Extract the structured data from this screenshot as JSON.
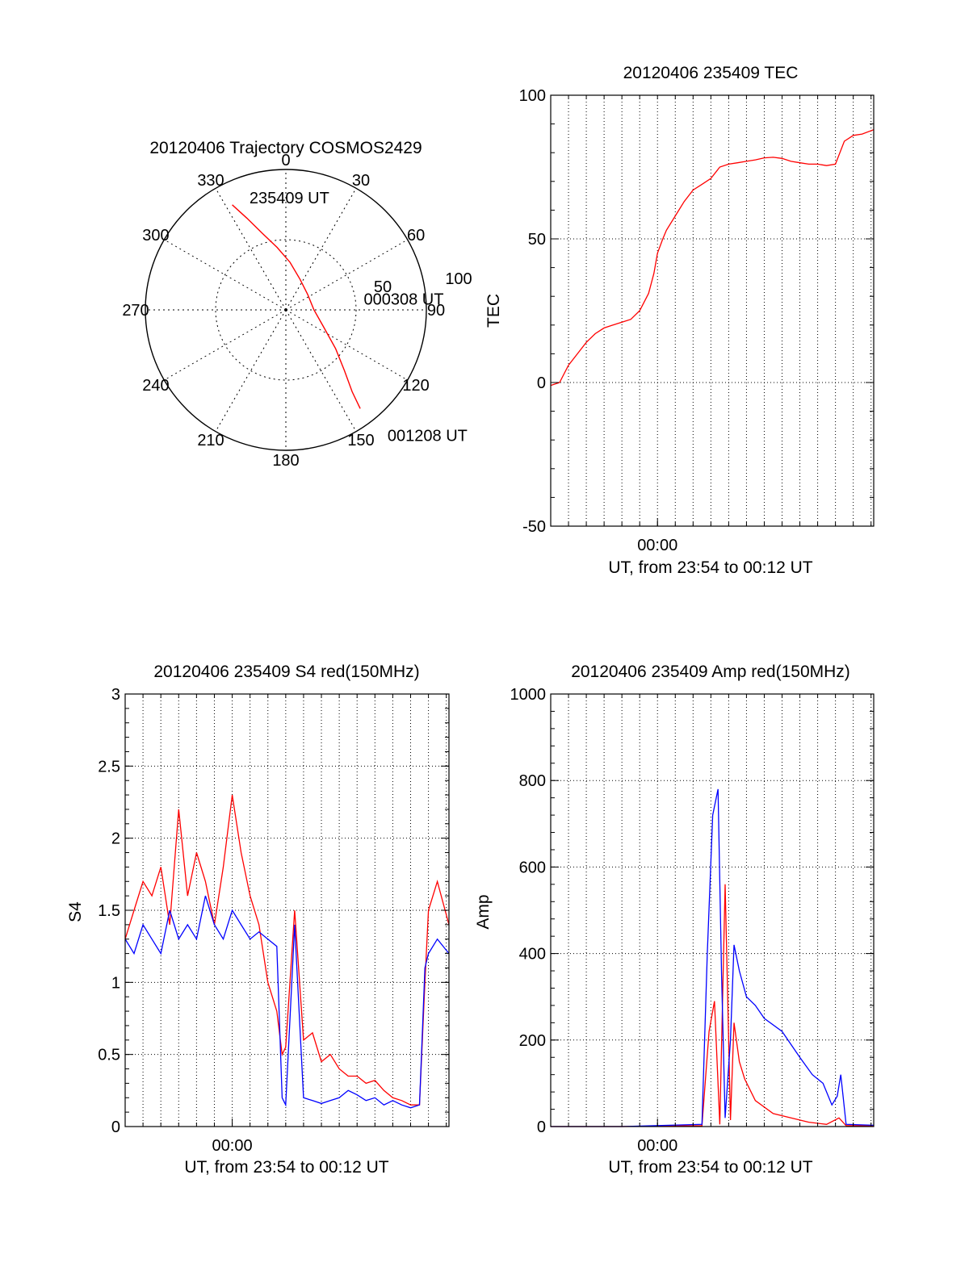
{
  "chart_data": [
    {
      "type": "polar",
      "title": "20120406 Trajectory COSMOS2429",
      "angle_labels": [
        "0",
        "30",
        "60",
        "90",
        "120",
        "150",
        "180",
        "210",
        "240",
        "270",
        "300",
        "330"
      ],
      "radius_labels": [
        "50",
        "100"
      ],
      "radius_range": [
        0,
        100
      ],
      "grid": true,
      "series": [
        {
          "color": "#ff0000",
          "points": [
            {
              "azimuth": 333,
              "zenith_angle": 84
            },
            {
              "azimuth": 337,
              "zenith_angle": 71
            },
            {
              "azimuth": 343,
              "zenith_angle": 57
            },
            {
              "azimuth": 352,
              "zenith_angle": 45
            },
            {
              "azimuth": 5,
              "zenith_angle": 34
            },
            {
              "azimuth": 25,
              "zenith_angle": 24
            },
            {
              "azimuth": 55,
              "zenith_angle": 19
            },
            {
              "azimuth": 90,
              "zenith_angle": 20
            },
            {
              "azimuth": 115,
              "zenith_angle": 30
            },
            {
              "azimuth": 128,
              "zenith_angle": 45
            },
            {
              "azimuth": 136,
              "zenith_angle": 60
            },
            {
              "azimuth": 141,
              "zenith_angle": 75
            },
            {
              "azimuth": 143,
              "zenith_angle": 88
            }
          ]
        }
      ],
      "annotations": [
        {
          "text": "235409 UT",
          "azimuth": 342,
          "zenith_angle": 84
        },
        {
          "text": "000308 UT",
          "azimuth": 82,
          "zenith_angle": 56
        },
        {
          "text": "001208 UT",
          "azimuth": 141,
          "zenith_angle": 115
        }
      ]
    },
    {
      "type": "line",
      "title": "20120406 235409 TEC",
      "xlabel": "UT, from 23:54 to 00:12 UT",
      "ylabel": "TEC",
      "xlim": [
        0,
        18.15
      ],
      "ylim": [
        -50,
        100
      ],
      "x_ticks": [
        {
          "label": "00:00",
          "value": 6
        }
      ],
      "yticks": [
        -50,
        0,
        50,
        100
      ],
      "grid": true,
      "series": [
        {
          "color": "#ff0000",
          "x": [
            0,
            0.5,
            1,
            1.5,
            2,
            2.5,
            3,
            3.5,
            4,
            4.5,
            5,
            5.5,
            5.8,
            6,
            6.3,
            6.5,
            7,
            7.5,
            8,
            8.5,
            9,
            9.5,
            10,
            10.5,
            11,
            11.5,
            12,
            12.5,
            13,
            13.5,
            14,
            14.5,
            15,
            15.5,
            16,
            16.5,
            17,
            17.5,
            18.15
          ],
          "y": [
            -1,
            0,
            6,
            10,
            14,
            17,
            19,
            20,
            21,
            22,
            25,
            31,
            38,
            45,
            50,
            53,
            58,
            63,
            67,
            69,
            71,
            75,
            76,
            76.5,
            77,
            77.5,
            78.2,
            78.4,
            78,
            77,
            76.5,
            76,
            76,
            75.5,
            76,
            84,
            86,
            86.5,
            88
          ]
        }
      ]
    },
    {
      "type": "line",
      "title": "20120406 235409 S4 red(150MHz)",
      "xlabel": "UT, from 23:54 to 00:12 UT",
      "ylabel": "S4",
      "xlim": [
        0,
        18.15
      ],
      "ylim": [
        0,
        3
      ],
      "x_ticks": [
        {
          "label": "00:00",
          "value": 6
        }
      ],
      "yticks": [
        0,
        0.5,
        1,
        1.5,
        2,
        2.5,
        3
      ],
      "ytick_labels": [
        "0",
        "0.5",
        "1",
        "1.5",
        "2",
        "2.5",
        "3"
      ],
      "grid": true,
      "series": [
        {
          "color": "#ff0000",
          "x": [
            0,
            0.5,
            1,
            1.5,
            2,
            2.5,
            3,
            3.5,
            4,
            4.5,
            5,
            5.5,
            6,
            6.5,
            7,
            7.5,
            8,
            8.5,
            8.8,
            9,
            9.5,
            10,
            10.5,
            11,
            11.5,
            12,
            12.5,
            13,
            13.5,
            14,
            14.5,
            15,
            15.5,
            16,
            16.5,
            16.8,
            17,
            17.5,
            18.15
          ],
          "y": [
            1.3,
            1.5,
            1.7,
            1.6,
            1.8,
            1.4,
            2.2,
            1.6,
            1.9,
            1.7,
            1.4,
            1.8,
            2.3,
            1.9,
            1.6,
            1.4,
            1.0,
            0.8,
            0.5,
            0.55,
            1.5,
            0.6,
            0.65,
            0.45,
            0.5,
            0.4,
            0.35,
            0.35,
            0.3,
            0.32,
            0.25,
            0.2,
            0.18,
            0.15,
            0.15,
            1.0,
            1.5,
            1.7,
            1.4
          ]
        },
        {
          "color": "#0000ff",
          "x": [
            0,
            0.5,
            1,
            1.5,
            2,
            2.5,
            3,
            3.5,
            4,
            4.5,
            5,
            5.5,
            6,
            6.5,
            7,
            7.5,
            8,
            8.5,
            8.8,
            9,
            9.5,
            10,
            10.5,
            11,
            11.5,
            12,
            12.5,
            13,
            13.5,
            14,
            14.5,
            15,
            15.5,
            16,
            16.5,
            16.8,
            17,
            17.5,
            18.15
          ],
          "y": [
            1.3,
            1.2,
            1.4,
            1.3,
            1.2,
            1.5,
            1.3,
            1.4,
            1.3,
            1.6,
            1.4,
            1.3,
            1.5,
            1.4,
            1.3,
            1.35,
            1.3,
            1.25,
            0.2,
            0.15,
            1.4,
            0.2,
            0.18,
            0.16,
            0.18,
            0.2,
            0.25,
            0.22,
            0.18,
            0.2,
            0.15,
            0.18,
            0.15,
            0.13,
            0.15,
            1.1,
            1.2,
            1.3,
            1.2
          ]
        }
      ]
    },
    {
      "type": "line",
      "title": "20120406 235409 Amp red(150MHz)",
      "xlabel": "UT, from 23:54 to 00:12 UT",
      "ylabel": "Amp",
      "xlim": [
        0,
        18.15
      ],
      "ylim": [
        0,
        1000
      ],
      "x_ticks": [
        {
          "label": "00:00",
          "value": 6
        }
      ],
      "yticks": [
        0,
        200,
        400,
        600,
        800,
        1000
      ],
      "grid": true,
      "series": [
        {
          "color": "#ff0000",
          "x": [
            0,
            4,
            8.5,
            8.9,
            9.2,
            9.5,
            9.8,
            10.1,
            10.3,
            10.6,
            10.9,
            11.5,
            12.5,
            13.5,
            14.5,
            15.5,
            16.2,
            16.6,
            18.15
          ],
          "y": [
            0,
            0,
            2,
            220,
            290,
            5,
            560,
            15,
            240,
            150,
            110,
            60,
            30,
            20,
            10,
            5,
            20,
            2,
            2
          ]
        },
        {
          "color": "#0000ff",
          "x": [
            0,
            4,
            8.5,
            8.8,
            9.1,
            9.4,
            9.6,
            9.8,
            10.1,
            10.3,
            10.6,
            11,
            11.5,
            12,
            13,
            14,
            14.7,
            15.3,
            15.8,
            16.1,
            16.3,
            16.6,
            18.15
          ],
          "y": [
            0,
            0,
            5,
            400,
            720,
            780,
            350,
            20,
            200,
            420,
            360,
            300,
            280,
            250,
            220,
            160,
            120,
            100,
            50,
            70,
            120,
            5,
            3
          ]
        }
      ]
    }
  ]
}
